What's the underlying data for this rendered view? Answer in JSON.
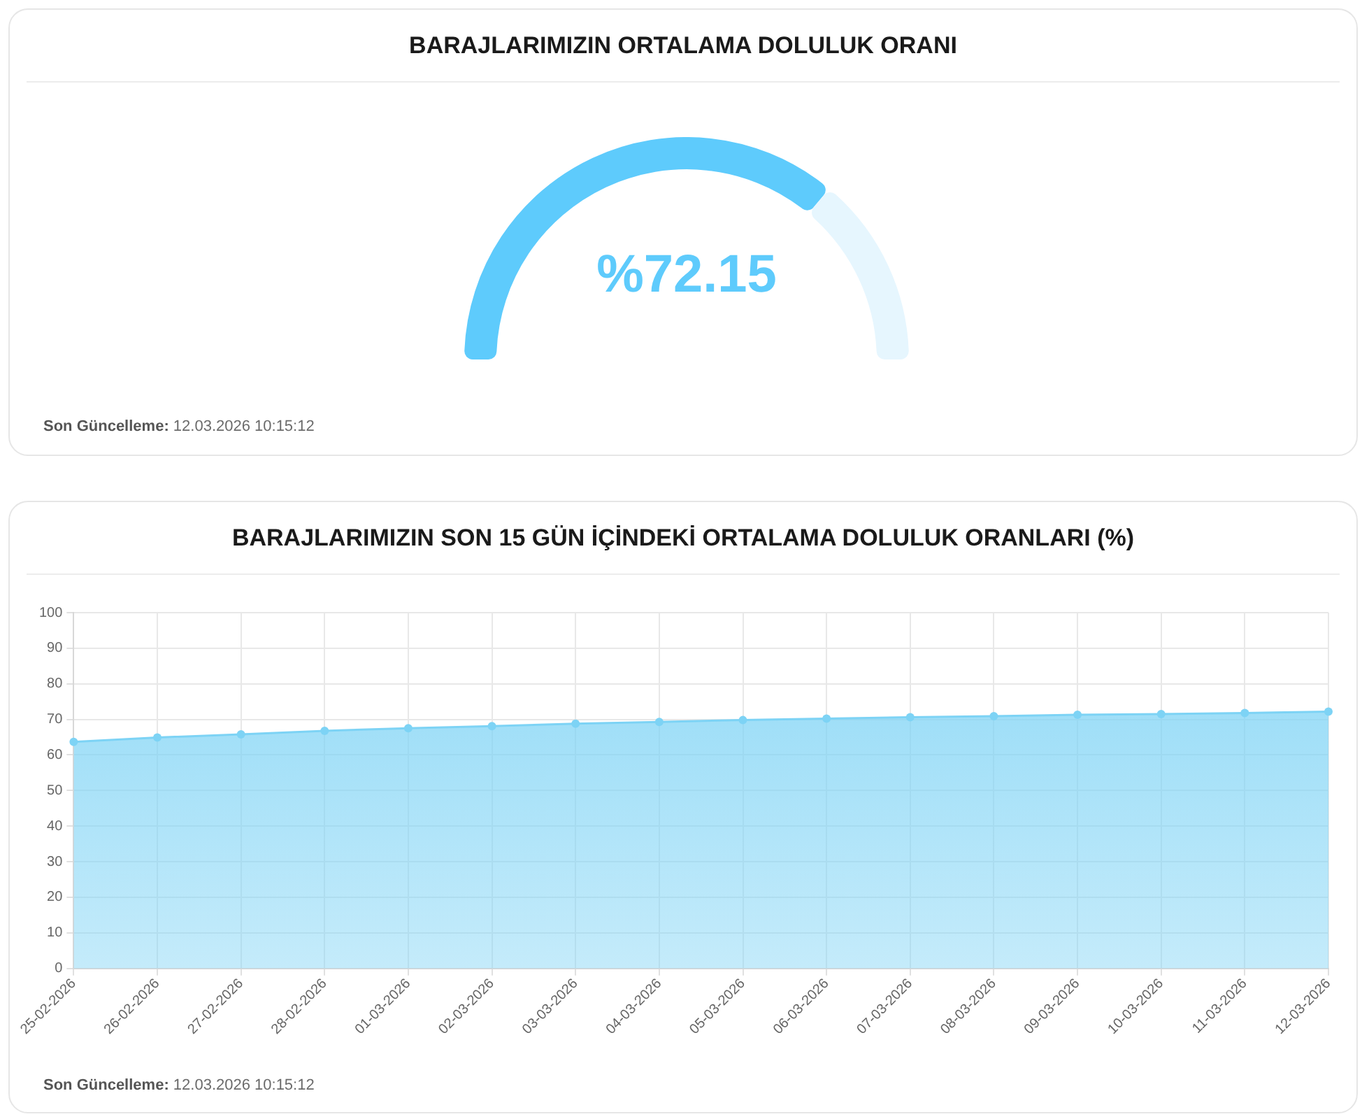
{
  "chart_data": [
    {
      "type": "donut",
      "title": "BARAJLARIMIZIN ORTALAMA DOLULUK ORANI",
      "categories": [
        null,
        null
      ],
      "values": [
        72.15,
        27.85
      ],
      "colors": [
        "#5ecbfc",
        "#e6f6fe"
      ],
      "value_labels": [
        "%72.15",
        null
      ],
      "annotations": [
        "Son Güncelleme: 12.03.2026 10:15:12"
      ]
    },
    {
      "type": "area",
      "title": "BARAJLARIMIZIN SON 15 GÜN İÇİNDEKİ ORTALAMA DOLULUK ORANLARI (%)",
      "categories": [
        "25-02-2026",
        "26-02-2026",
        "27-02-2026",
        "28-02-2026",
        "01-03-2026",
        "02-03-2026",
        "03-03-2026",
        "04-03-2026",
        "05-03-2026",
        "06-03-2026",
        "07-03-2026",
        "08-03-2026",
        "09-03-2026",
        "10-03-2026",
        "11-03-2026",
        "12-03-2026"
      ],
      "series": [
        {
          "color": "#7dd3f5",
          "values": [
            63.7,
            64.9,
            65.8,
            66.8,
            67.5,
            68.1,
            68.8,
            69.3,
            69.8,
            70.2,
            70.6,
            70.9,
            71.3,
            71.5,
            71.8,
            72.2
          ]
        }
      ],
      "ylim": [
        0,
        100
      ],
      "yticks": [
        0,
        10,
        20,
        30,
        40,
        50,
        60,
        70,
        80,
        90,
        100
      ],
      "grid": true,
      "marker": "circle",
      "annotations": [
        "Son Güncelleme: 12.03.2026 10:15:12"
      ]
    }
  ]
}
